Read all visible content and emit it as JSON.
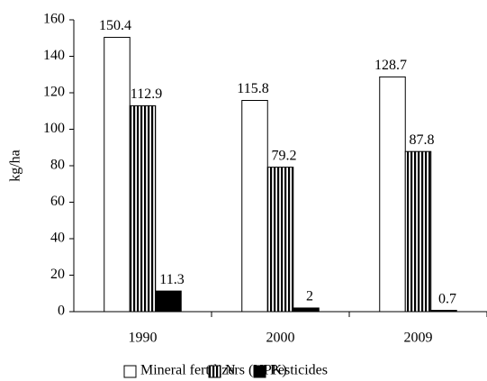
{
  "chart_data": {
    "type": "bar",
    "ylabel": "kg/ha",
    "categories": [
      "1990",
      "2000",
      "2009"
    ],
    "series": [
      {
        "name": "Mineral fertilizers (NPK)",
        "color": "#ffffff",
        "values": [
          150.4,
          115.8,
          128.7
        ]
      },
      {
        "name": "N",
        "color": "#000000",
        "hatch": "vertical",
        "values": [
          112.9,
          79.2,
          87.8
        ]
      },
      {
        "name": "Pesticides",
        "color": "#000000",
        "values": [
          11.3,
          2,
          0.7
        ]
      }
    ],
    "ylim": [
      0,
      160
    ],
    "yticks": [
      0,
      20,
      40,
      60,
      80,
      100,
      120,
      140,
      160
    ],
    "grid": false,
    "legend": "bottom"
  }
}
